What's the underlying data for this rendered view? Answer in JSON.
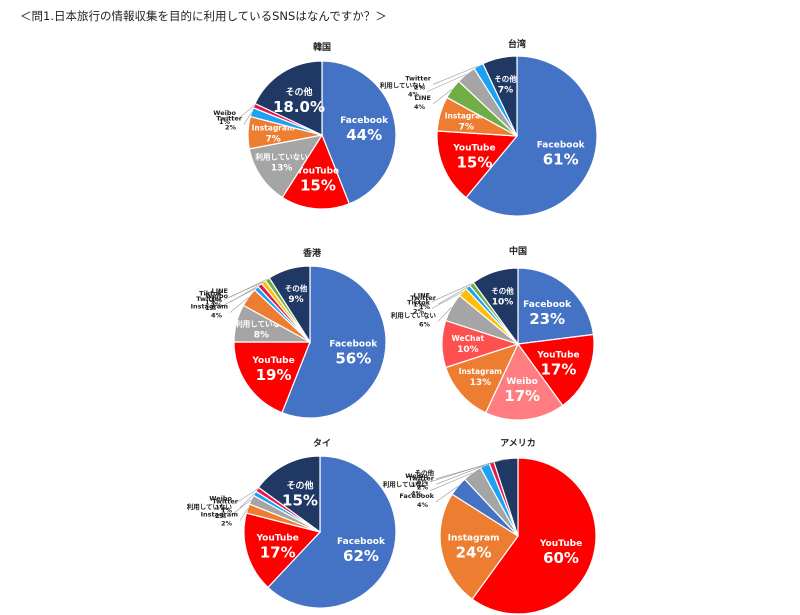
{
  "header": {
    "title": "＜問1.日本旅行の情報収集を目的に利用しているSNSはなんですか？＞"
  },
  "chart_data": [
    {
      "type": "pie",
      "title": "韓国",
      "slices": [
        {
          "label": "Facebook",
          "value": 44,
          "value_label": "44%",
          "color": "#4472C4"
        },
        {
          "label": "YouTube",
          "value": 15,
          "value_label": "15%",
          "color": "#FF0000"
        },
        {
          "label": "利用していない",
          "value": 13,
          "value_label": "13%",
          "color": "#A5A5A5"
        },
        {
          "label": "Instagram",
          "value": 7,
          "value_label": "7%",
          "color": "#ED7D31"
        },
        {
          "label": "Twitter",
          "value": 2,
          "value_label": "2%",
          "color": "#1DA1F2"
        },
        {
          "label": "Weibo",
          "value": 1,
          "value_label": "1%",
          "color": "#E6194B"
        },
        {
          "label": "その他",
          "value": 18,
          "value_label": "18.0%",
          "color": "#203864"
        }
      ]
    },
    {
      "type": "pie",
      "title": "台湾",
      "slices": [
        {
          "label": "Facebook",
          "value": 61,
          "value_label": "61%",
          "color": "#4472C4"
        },
        {
          "label": "YouTube",
          "value": 15,
          "value_label": "15%",
          "color": "#FF0000"
        },
        {
          "label": "Instagram",
          "value": 7,
          "value_label": "7%",
          "color": "#ED7D31"
        },
        {
          "label": "LINE",
          "value": 4,
          "value_label": "4%",
          "color": "#70AD47"
        },
        {
          "label": "利用していない",
          "value": 4,
          "value_label": "4%",
          "color": "#A5A5A5"
        },
        {
          "label": "Twitter",
          "value": 2,
          "value_label": "2%",
          "color": "#1DA1F2"
        },
        {
          "label": "その他",
          "value": 7,
          "value_label": "7%",
          "color": "#203864"
        }
      ]
    },
    {
      "type": "pie",
      "title": "香港",
      "slices": [
        {
          "label": "Facebook",
          "value": 56,
          "value_label": "56%",
          "color": "#4472C4"
        },
        {
          "label": "YouTube",
          "value": 19,
          "value_label": "19%",
          "color": "#FF0000"
        },
        {
          "label": "利用していない",
          "value": 8,
          "value_label": "8%",
          "color": "#A5A5A5"
        },
        {
          "label": "Instagram",
          "value": 4,
          "value_label": "4%",
          "color": "#ED7D31"
        },
        {
          "label": "Twitter",
          "value": 1,
          "value_label": "1%",
          "color": "#1DA1F2"
        },
        {
          "label": "Weibo",
          "value": 1,
          "value_label": "1%",
          "color": "#E6194B"
        },
        {
          "label": "Tiktok",
          "value": 1,
          "value_label": "1%",
          "color": "#FFC000"
        },
        {
          "label": "LINE",
          "value": 1,
          "value_label": "1%",
          "color": "#70AD47"
        },
        {
          "label": "その他",
          "value": 9,
          "value_label": "9%",
          "color": "#203864"
        }
      ]
    },
    {
      "type": "pie",
      "title": "中国",
      "slices": [
        {
          "label": "Facebook",
          "value": 23,
          "value_label": "23%",
          "color": "#4472C4"
        },
        {
          "label": "YouTube",
          "value": 17,
          "value_label": "17%",
          "color": "#FF0000"
        },
        {
          "label": "Weibo",
          "value": 17,
          "value_label": "17%",
          "color": "#FF7C80"
        },
        {
          "label": "Instagram",
          "value": 13,
          "value_label": "13%",
          "color": "#ED7D31"
        },
        {
          "label": "WeChat",
          "value": 10,
          "value_label": "10%",
          "color": "#FF5050"
        },
        {
          "label": "利用していない",
          "value": 6,
          "value_label": "6%",
          "color": "#A5A5A5"
        },
        {
          "label": "Tiktok",
          "value": 2,
          "value_label": "2%",
          "color": "#FFC000"
        },
        {
          "label": "Twitter",
          "value": 1,
          "value_label": "1%",
          "color": "#1DA1F2"
        },
        {
          "label": "LINE",
          "value": 1,
          "value_label": "1%",
          "color": "#70AD47"
        },
        {
          "label": "その他",
          "value": 10,
          "value_label": "10%",
          "color": "#203864"
        }
      ]
    },
    {
      "type": "pie",
      "title": "タイ",
      "slices": [
        {
          "label": "Facebook",
          "value": 62,
          "value_label": "62%",
          "color": "#4472C4"
        },
        {
          "label": "YouTube",
          "value": 17,
          "value_label": "17%",
          "color": "#FF0000"
        },
        {
          "label": "Instagram",
          "value": 2,
          "value_label": "2%",
          "color": "#ED7D31"
        },
        {
          "label": "利用していない",
          "value": 2,
          "value_label": "2%",
          "color": "#A5A5A5"
        },
        {
          "label": "Twitter",
          "value": 1,
          "value_label": "1%",
          "color": "#1DA1F2"
        },
        {
          "label": "Weibo",
          "value": 1,
          "value_label": "1%",
          "color": "#E6194B"
        },
        {
          "label": "その他",
          "value": 15,
          "value_label": "15%",
          "color": "#203864"
        }
      ]
    },
    {
      "type": "pie",
      "title": "アメリカ",
      "slices": [
        {
          "label": "YouTube",
          "value": 60,
          "value_label": "60%",
          "color": "#FF0000"
        },
        {
          "label": "Instagram",
          "value": 24,
          "value_label": "24%",
          "color": "#ED7D31"
        },
        {
          "label": "Facebook",
          "value": 4,
          "value_label": "4%",
          "color": "#4472C4"
        },
        {
          "label": "利用していない",
          "value": 4,
          "value_label": "4%",
          "color": "#A5A5A5"
        },
        {
          "label": "Twitter",
          "value": 2,
          "value_label": "2%",
          "color": "#1DA1F2"
        },
        {
          "label": "Weibo",
          "value": 1,
          "value_label": "1%",
          "color": "#E6194B"
        },
        {
          "label": "その他",
          "value": 5,
          "value_label": "5%",
          "color": "#203864"
        }
      ]
    }
  ]
}
